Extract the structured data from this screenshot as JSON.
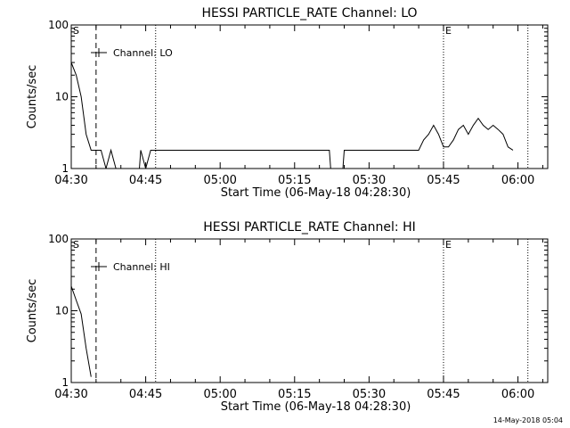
{
  "footer": {
    "timestamp": "14-May-2018 05:04"
  },
  "chart_data": [
    {
      "type": "line",
      "title": "HESSI PARTICLE_RATE Channel: LO",
      "xlabel": "Start Time (06-May-18 04:28:30)",
      "ylabel": "Counts/sec",
      "xlim": [
        "04:30",
        "06:06"
      ],
      "ylim": [
        1,
        100
      ],
      "yscale": "log",
      "grid": false,
      "legend": "top-left",
      "x_ticks": [
        "04:30",
        "04:45",
        "05:00",
        "05:15",
        "05:30",
        "05:45",
        "06:00"
      ],
      "y_ticks": [
        "1",
        "10",
        "100"
      ],
      "markers": [
        {
          "label": "S",
          "time": "04:30",
          "style": "solid"
        },
        {
          "label": "",
          "time": "04:35",
          "style": "dashed"
        },
        {
          "label": "",
          "time": "04:47",
          "style": "dotted"
        },
        {
          "label": "E",
          "time": "05:45",
          "style": "dotted"
        },
        {
          "label": "",
          "time": "06:02",
          "style": "dotted"
        }
      ],
      "series": [
        {
          "name": "Channel: LO",
          "x": [
            "04:30",
            "04:31",
            "04:32",
            "04:33",
            "04:34",
            "04:35",
            "04:36",
            "04:37",
            "04:38",
            "04:39",
            "04:44",
            "04:45",
            "04:46",
            "04:47",
            "04:48",
            "04:49",
            "04:50",
            "04:51",
            "04:52",
            "04:53",
            "04:54",
            "04:55",
            "04:56",
            "04:57",
            "04:58",
            "04:59",
            "05:00",
            "05:01",
            "05:02",
            "05:03",
            "05:04",
            "05:05",
            "05:06",
            "05:07",
            "05:08",
            "05:09",
            "05:10",
            "05:11",
            "05:12",
            "05:13",
            "05:14",
            "05:15",
            "05:16",
            "05:17",
            "05:18",
            "05:19",
            "05:20",
            "05:21",
            "05:22",
            "05:25",
            "05:26",
            "05:27",
            "05:28",
            "05:29",
            "05:30",
            "05:31",
            "05:32",
            "05:33",
            "05:34",
            "05:35",
            "05:36",
            "05:37",
            "05:38",
            "05:39",
            "05:40",
            "05:41",
            "05:42",
            "05:43",
            "05:44",
            "05:45",
            "05:46",
            "05:47",
            "05:48",
            "05:49",
            "05:50",
            "05:51",
            "05:52",
            "05:53",
            "05:54",
            "05:55",
            "05:56",
            "05:57",
            "05:58",
            "05:59"
          ],
          "y": [
            30,
            20,
            10,
            3,
            1.8,
            1.8,
            1.8,
            1,
            1.8,
            1,
            1.8,
            1,
            1.8,
            1.8,
            1.8,
            1.8,
            1.8,
            1.8,
            1.8,
            1.8,
            1.8,
            1.8,
            1.8,
            1.8,
            1.8,
            1.8,
            1.8,
            1.8,
            1.8,
            1.8,
            1.8,
            1.8,
            1.8,
            1.8,
            1.8,
            1.8,
            1.8,
            1.8,
            1.8,
            1.8,
            1.8,
            1.8,
            1.8,
            1.8,
            1.8,
            1.8,
            1.8,
            1.8,
            1.8,
            1.8,
            1.8,
            1.8,
            1.8,
            1.8,
            1.8,
            1.8,
            1.8,
            1.8,
            1.8,
            1.8,
            1.8,
            1.8,
            1.8,
            1.8,
            1.8,
            2.5,
            3,
            4,
            3,
            2,
            2,
            2.5,
            3.5,
            4,
            3,
            4,
            5,
            4,
            3.5,
            4,
            3.5,
            3,
            2,
            1.8
          ]
        }
      ]
    },
    {
      "type": "line",
      "title": "HESSI PARTICLE_RATE Channel: HI",
      "xlabel": "Start Time (06-May-18 04:28:30)",
      "ylabel": "Counts/sec",
      "xlim": [
        "04:30",
        "06:06"
      ],
      "ylim": [
        1,
        100
      ],
      "yscale": "log",
      "grid": false,
      "legend": "top-left",
      "x_ticks": [
        "04:30",
        "04:45",
        "05:00",
        "05:15",
        "05:30",
        "05:45",
        "06:00"
      ],
      "y_ticks": [
        "1",
        "10",
        "100"
      ],
      "markers": [
        {
          "label": "S",
          "time": "04:30",
          "style": "solid"
        },
        {
          "label": "",
          "time": "04:35",
          "style": "dashed"
        },
        {
          "label": "",
          "time": "04:47",
          "style": "dotted"
        },
        {
          "label": "E",
          "time": "05:45",
          "style": "dotted"
        },
        {
          "label": "",
          "time": "06:02",
          "style": "dotted"
        }
      ],
      "series": [
        {
          "name": "Channel: HI",
          "x": [
            "04:30",
            "04:31",
            "04:32",
            "04:33",
            "04:34"
          ],
          "y": [
            22,
            14,
            9,
            3,
            1.2
          ]
        }
      ]
    }
  ]
}
